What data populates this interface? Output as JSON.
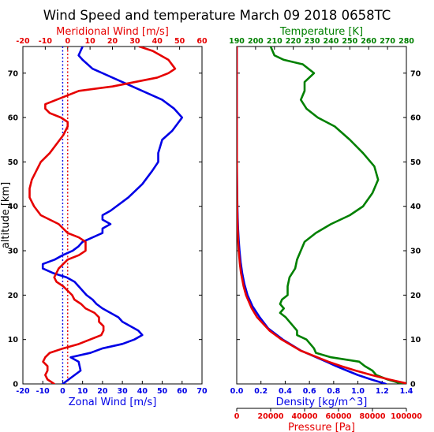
{
  "title": "Wind Speed and temperature March 09 2018 0658TC",
  "colors": {
    "red": "#e60000",
    "blue": "#0000e6",
    "green": "#008000",
    "black": "#000000"
  },
  "chart_data": [
    {
      "type": "line",
      "panel": "left",
      "ylabel": "altitude [km]",
      "ylim": [
        0,
        76
      ],
      "yticks": [
        0,
        10,
        20,
        30,
        40,
        50,
        60,
        70
      ],
      "axes": {
        "bottom": {
          "label": "Zonal Wind [m/s]",
          "lim": [
            -20,
            70
          ],
          "ticks": [
            -20,
            -10,
            0,
            10,
            20,
            30,
            40,
            50,
            60,
            70
          ],
          "color": "blue"
        },
        "top": {
          "label": "Meridional Wind [m/s]",
          "lim": [
            -20,
            60
          ],
          "ticks": [
            -20,
            -10,
            0,
            10,
            20,
            30,
            40,
            50,
            60
          ],
          "color": "red"
        }
      },
      "series": [
        {
          "axis": "bottom",
          "color": "blue",
          "x": [
            0,
            3,
            9,
            8,
            4,
            14,
            20,
            30,
            36,
            40,
            38,
            34,
            30,
            28,
            24,
            20,
            17,
            15,
            12,
            10,
            8,
            6,
            2,
            -5,
            -10,
            -10,
            -4,
            0,
            5,
            8,
            10,
            15,
            20,
            20,
            24,
            20,
            20,
            24,
            33,
            40,
            45,
            48,
            48,
            50,
            55,
            60,
            56,
            50,
            40,
            35,
            30,
            25,
            15,
            10,
            8,
            10
          ],
          "y": [
            0,
            1,
            3,
            5,
            6,
            7,
            8,
            9,
            10,
            11,
            12,
            13,
            14,
            15,
            16,
            17,
            18,
            19,
            20,
            21,
            22,
            23,
            24,
            25,
            26,
            27,
            28,
            29,
            30,
            31,
            32,
            33,
            34,
            35,
            36,
            37,
            38,
            39,
            42,
            45,
            48,
            50,
            52,
            55,
            57,
            60,
            62,
            64,
            66,
            67,
            68,
            69,
            71,
            73,
            74,
            76
          ]
        },
        {
          "axis": "top",
          "color": "red",
          "x": [
            -6,
            -9,
            -10,
            -9,
            -9,
            -11,
            -10,
            -8,
            -2,
            5,
            10,
            15,
            16,
            16,
            14,
            14,
            12,
            8,
            6,
            3,
            2,
            0,
            -2,
            -5,
            -6,
            -4,
            0,
            5,
            8,
            8,
            5,
            0,
            -2,
            -4,
            -8,
            -12,
            -15,
            -16,
            -17,
            -17,
            -16,
            -14,
            -12,
            -8,
            -5,
            -2,
            0,
            0,
            -3,
            -8,
            -10,
            -10,
            -5,
            5,
            20,
            30,
            40,
            45,
            48,
            45,
            38,
            32
          ],
          "y": [
            0,
            1,
            2,
            3,
            4,
            5,
            6,
            7,
            8,
            9,
            10,
            11,
            12,
            13,
            14,
            15,
            16,
            17,
            18,
            19,
            20,
            21,
            22,
            23,
            24,
            26,
            28,
            29,
            30,
            32,
            33,
            34,
            35,
            36,
            37,
            38,
            40,
            41,
            42,
            44,
            46,
            48,
            50,
            52,
            54,
            56,
            58,
            59,
            60,
            61,
            62,
            63,
            64,
            66,
            67,
            68,
            69,
            70,
            71,
            73,
            75,
            76
          ]
        }
      ],
      "reference_lines": [
        {
          "axis": "bottom",
          "value": 0,
          "color": "blue",
          "style": "dotted"
        },
        {
          "axis": "top",
          "value": 0,
          "color": "red",
          "style": "dotted"
        }
      ]
    },
    {
      "type": "line",
      "panel": "right",
      "ylabel": "",
      "ylim": [
        0,
        76
      ],
      "yticks": [
        0,
        10,
        20,
        30,
        40,
        50,
        60,
        70
      ],
      "axes": {
        "top": {
          "label": "Temperature [K]",
          "lim": [
            190,
            280
          ],
          "ticks": [
            190,
            200,
            210,
            220,
            230,
            240,
            250,
            260,
            270,
            280
          ],
          "color": "green"
        },
        "bottom": {
          "label": "Density [kg/m^3]",
          "lim": [
            0.0,
            1.4
          ],
          "ticks": [
            "0.0",
            "0.2",
            "0.4",
            "0.6",
            "0.8",
            "1.0",
            "1.2",
            "1.4"
          ],
          "color": "blue"
        },
        "bottom2": {
          "label": "Pressure [Pa]",
          "lim": [
            0,
            100000
          ],
          "ticks": [
            0,
            20000,
            40000,
            60000,
            80000,
            100000
          ],
          "color": "red"
        }
      },
      "series": [
        {
          "axis": "top",
          "color": "green",
          "name_axis": "Temperature [K]",
          "x": [
            278,
            270,
            264,
            262,
            258,
            255,
            240,
            232,
            231,
            229,
            227,
            222,
            222,
            220,
            218,
            216,
            213,
            215,
            213,
            214,
            217,
            217,
            218,
            221,
            222,
            224,
            226,
            232,
            240,
            250,
            257,
            262,
            265,
            263,
            257,
            250,
            242,
            233,
            227,
            224,
            226,
            226,
            231,
            225,
            215,
            210,
            208
          ],
          "y": [
            0,
            1,
            2,
            3,
            4,
            5,
            6,
            7,
            8,
            9,
            10,
            11,
            12,
            13,
            14,
            15,
            16,
            17,
            18,
            19,
            20,
            22,
            24,
            26,
            28,
            30,
            32,
            34,
            36,
            38,
            40,
            43,
            46,
            49,
            52,
            55,
            58,
            60,
            62,
            64,
            66,
            68,
            70,
            72,
            73,
            74,
            76
          ]
        },
        {
          "axis": "bottom",
          "color": "blue",
          "name_axis": "Density [kg/m^3]",
          "x": [
            1.23,
            1.11,
            1.0,
            0.91,
            0.82,
            0.74,
            0.53,
            0.38,
            0.26,
            0.19,
            0.13,
            0.089,
            0.063,
            0.045,
            0.032,
            0.023,
            0.016,
            0.011,
            0.0078,
            0.0055,
            0.004,
            0.0028,
            0.002,
            0.0013,
            0.0009,
            0.0006,
            0.0004,
            0.0003,
            0.0002,
            0.0001
          ],
          "y": [
            0,
            1,
            2,
            3,
            4,
            5,
            7.5,
            10,
            12.5,
            15,
            17.5,
            20,
            22.5,
            25,
            27.5,
            30,
            32.5,
            35,
            37.5,
            40,
            42.5,
            45,
            47.5,
            50,
            52.5,
            55,
            60,
            65,
            70,
            76
          ]
        },
        {
          "axis": "bottom2",
          "color": "red",
          "name_axis": "Pressure [Pa]",
          "x": [
            101325,
            89875,
            79495,
            70109,
            61640,
            54020,
            37610,
            26436,
            19330,
            12045,
            8850,
            5474,
            4050,
            2511,
            1870,
            1172,
            870,
            559,
            420,
            278,
            210,
            144,
            110,
            76,
            60,
            40,
            20,
            10,
            5,
            2
          ],
          "y": [
            0,
            1,
            2,
            3,
            4,
            5,
            7.5,
            10,
            12,
            15,
            17,
            20,
            22,
            25,
            27,
            30,
            32,
            35,
            37,
            40,
            42,
            45,
            47,
            50,
            52,
            55,
            60,
            65,
            70,
            76
          ]
        }
      ]
    }
  ]
}
